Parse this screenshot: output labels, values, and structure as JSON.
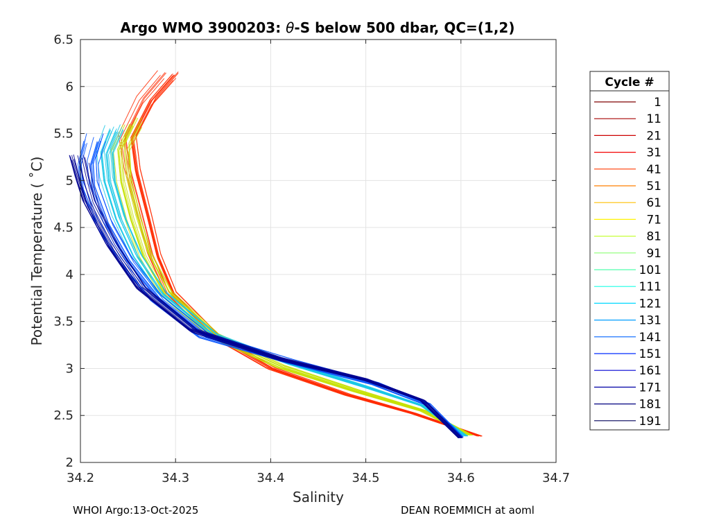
{
  "chart_data": {
    "type": "line",
    "title_prefix": "Argo WMO 3900203: ",
    "title_theta": "θ",
    "title_suffix": "-S below 500 dbar,  QC=(1,2)",
    "xlabel": "Salinity",
    "ylabel": "Potential Temperature ( ˚C)",
    "xlim": [
      34.2,
      34.7
    ],
    "ylim": [
      2,
      6.5
    ],
    "xticks": [
      "34.2",
      "34.3",
      "34.4",
      "34.5",
      "34.6",
      "34.7"
    ],
    "yticks": [
      "2",
      "2.5",
      "3",
      "3.5",
      "4",
      "4.5",
      "5",
      "5.5",
      "6",
      "6.5"
    ],
    "grid": true,
    "legend_position": "outside-right",
    "legend": {
      "title": "Cycle #",
      "entries": [
        {
          "label": "1",
          "color": "#7f0000"
        },
        {
          "label": "11",
          "color": "#a60000"
        },
        {
          "label": "21",
          "color": "#cd0000"
        },
        {
          "label": "31",
          "color": "#f40000"
        },
        {
          "label": "41",
          "color": "#ff3a00"
        },
        {
          "label": "51",
          "color": "#ff7f00"
        },
        {
          "label": "61",
          "color": "#ffbf00"
        },
        {
          "label": "71",
          "color": "#fff200"
        },
        {
          "label": "81",
          "color": "#c6ff39"
        },
        {
          "label": "91",
          "color": "#8cff73"
        },
        {
          "label": "101",
          "color": "#52ffad"
        },
        {
          "label": "111",
          "color": "#19ffe6"
        },
        {
          "label": "121",
          "color": "#00d8ff"
        },
        {
          "label": "131",
          "color": "#009eff"
        },
        {
          "label": "141",
          "color": "#0064ff"
        },
        {
          "label": "151",
          "color": "#002aff"
        },
        {
          "label": "161",
          "color": "#0000d4"
        },
        {
          "label": "171",
          "color": "#0000a6"
        },
        {
          "label": "181",
          "color": "#000080"
        },
        {
          "label": "191",
          "color": "#00005a"
        }
      ]
    },
    "series_shape": [
      {
        "name": "early cycles (red)",
        "color": "#ff2a00",
        "points": [
          [
            34.293,
            6.12
          ],
          [
            34.27,
            5.85
          ],
          [
            34.25,
            5.45
          ],
          [
            34.255,
            5.1
          ],
          [
            34.268,
            4.6
          ],
          [
            34.278,
            4.2
          ],
          [
            34.295,
            3.8
          ],
          [
            34.34,
            3.35
          ],
          [
            34.4,
            3.0
          ],
          [
            34.48,
            2.72
          ],
          [
            34.55,
            2.52
          ],
          [
            34.62,
            2.28
          ]
        ]
      },
      {
        "name": "middle cycles (yellow-green)",
        "color": "#c6e000",
        "points": [
          [
            34.255,
            5.62
          ],
          [
            34.242,
            5.35
          ],
          [
            34.245,
            5.0
          ],
          [
            34.255,
            4.6
          ],
          [
            34.268,
            4.2
          ],
          [
            34.29,
            3.8
          ],
          [
            34.34,
            3.35
          ],
          [
            34.41,
            3.02
          ],
          [
            34.49,
            2.76
          ],
          [
            34.56,
            2.55
          ],
          [
            34.61,
            2.29
          ]
        ]
      },
      {
        "name": "middle cycles (cyan)",
        "color": "#19c8e6",
        "points": [
          [
            34.235,
            5.55
          ],
          [
            34.225,
            5.3
          ],
          [
            34.228,
            5.0
          ],
          [
            34.24,
            4.6
          ],
          [
            34.258,
            4.2
          ],
          [
            34.285,
            3.8
          ],
          [
            34.34,
            3.35
          ],
          [
            34.42,
            3.05
          ],
          [
            34.5,
            2.8
          ],
          [
            34.56,
            2.6
          ],
          [
            34.605,
            2.28
          ]
        ]
      },
      {
        "name": "late cycles (blue)",
        "color": "#0050ff",
        "points": [
          [
            34.215,
            5.45
          ],
          [
            34.208,
            5.2
          ],
          [
            34.21,
            4.95
          ],
          [
            34.225,
            4.55
          ],
          [
            34.248,
            4.15
          ],
          [
            34.28,
            3.75
          ],
          [
            34.33,
            3.35
          ],
          [
            34.42,
            3.08
          ],
          [
            34.51,
            2.84
          ],
          [
            34.565,
            2.62
          ],
          [
            34.6,
            2.27
          ]
        ]
      },
      {
        "name": "latest cycles (navy)",
        "color": "#000090",
        "points": [
          [
            34.2,
            5.22
          ],
          [
            34.205,
            5.0
          ],
          [
            34.212,
            4.75
          ],
          [
            34.235,
            4.3
          ],
          [
            34.265,
            3.85
          ],
          [
            34.32,
            3.4
          ],
          [
            34.41,
            3.1
          ],
          [
            34.5,
            2.88
          ],
          [
            34.56,
            2.66
          ],
          [
            34.6,
            2.26
          ]
        ]
      }
    ]
  },
  "footer": {
    "left": "WHOI Argo:13-Oct-2025",
    "right": "DEAN ROEMMICH at aoml"
  }
}
